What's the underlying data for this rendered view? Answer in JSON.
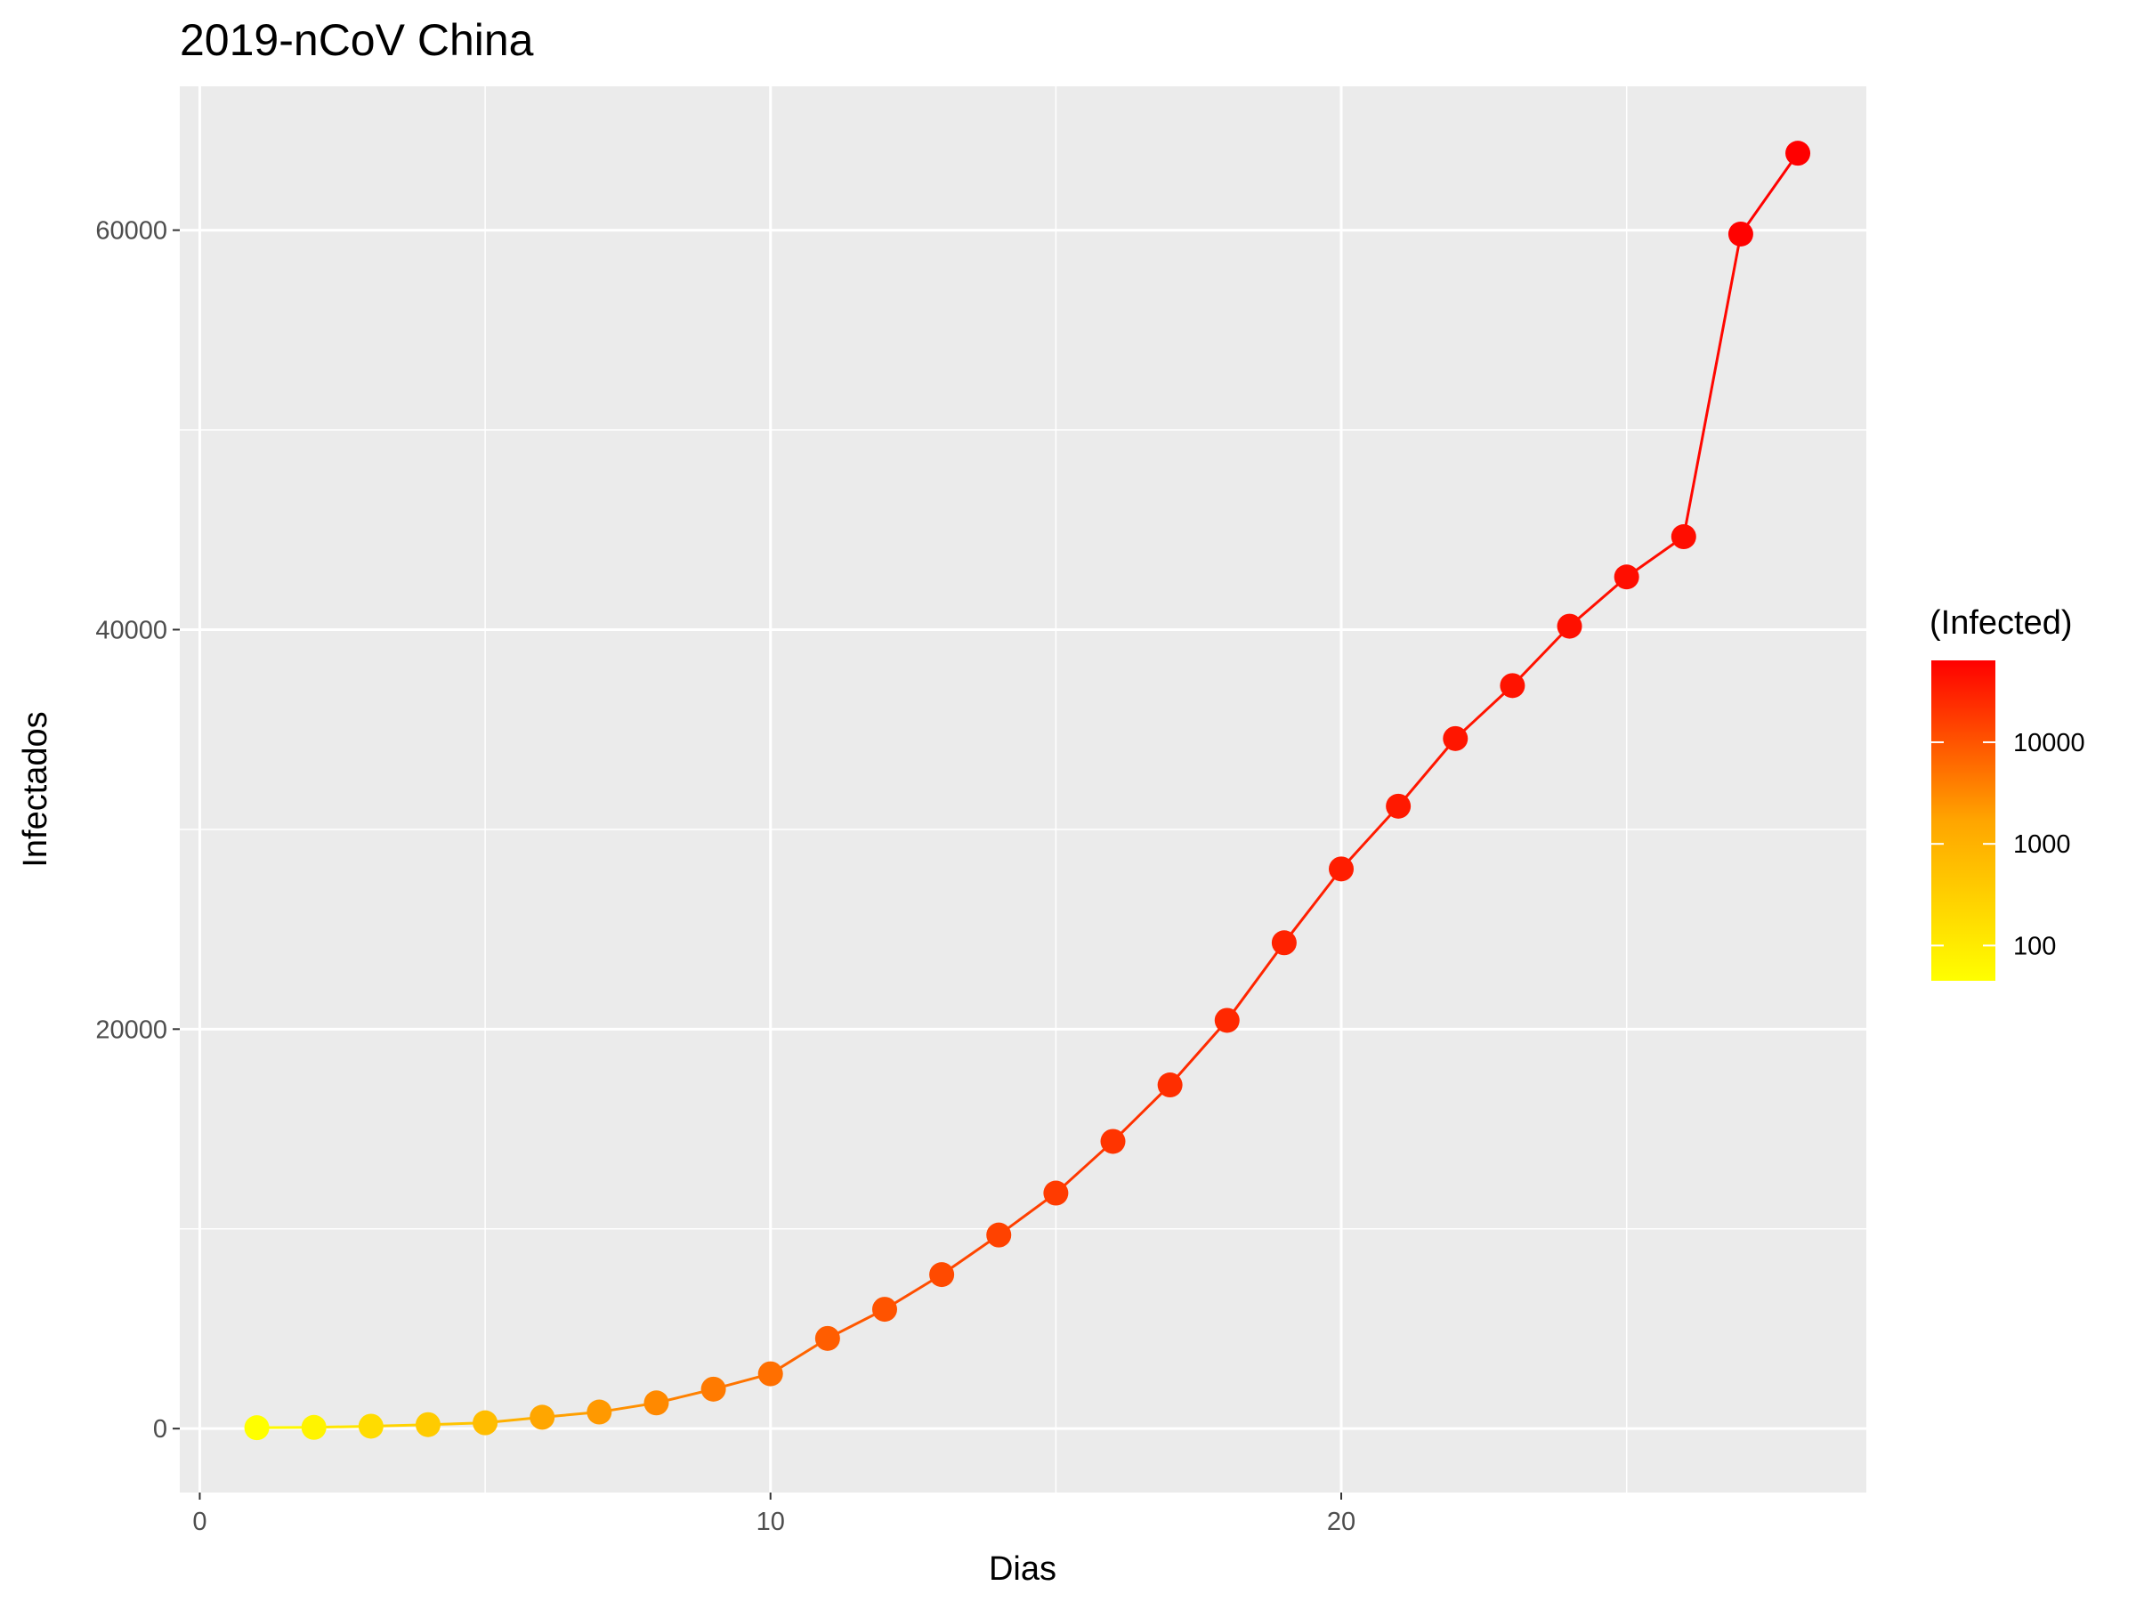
{
  "chart_data": {
    "type": "line",
    "title": "2019-nCoV China",
    "xlabel": "Dias",
    "ylabel": "Infectados",
    "x": [
      1,
      2,
      3,
      4,
      5,
      6,
      7,
      8,
      9,
      10,
      11,
      12,
      13,
      14,
      15,
      16,
      17,
      18,
      19,
      20,
      21,
      22,
      23,
      24,
      25,
      26,
      27,
      28
    ],
    "series": [
      {
        "values": [
          45,
          62,
          121,
          198,
          291,
          570,
          830,
          1287,
          1975,
          2744,
          4515,
          5974,
          7711,
          9692,
          11791,
          14380,
          17205,
          20438,
          24324,
          28018,
          31161,
          34546,
          37198,
          40171,
          42638,
          44653,
          59804,
          63851
        ]
      }
    ],
    "xlim": [
      -0.35,
      29.2
    ],
    "ylim": [
      -3200,
      67200
    ],
    "x_ticks": [
      "0",
      "10",
      "20"
    ],
    "y_ticks": [
      "0",
      "20000",
      "40000",
      "60000"
    ],
    "grid": true,
    "color_scale": {
      "title": "(Infected)",
      "trans": "log10",
      "low_color": "#ffff00",
      "high_color": "#ff0000",
      "range": [
        45,
        63851
      ],
      "tick_labels": [
        "100",
        "1000",
        "10000"
      ],
      "tick_values": [
        100,
        1000,
        10000
      ]
    },
    "legend_position": "right"
  }
}
